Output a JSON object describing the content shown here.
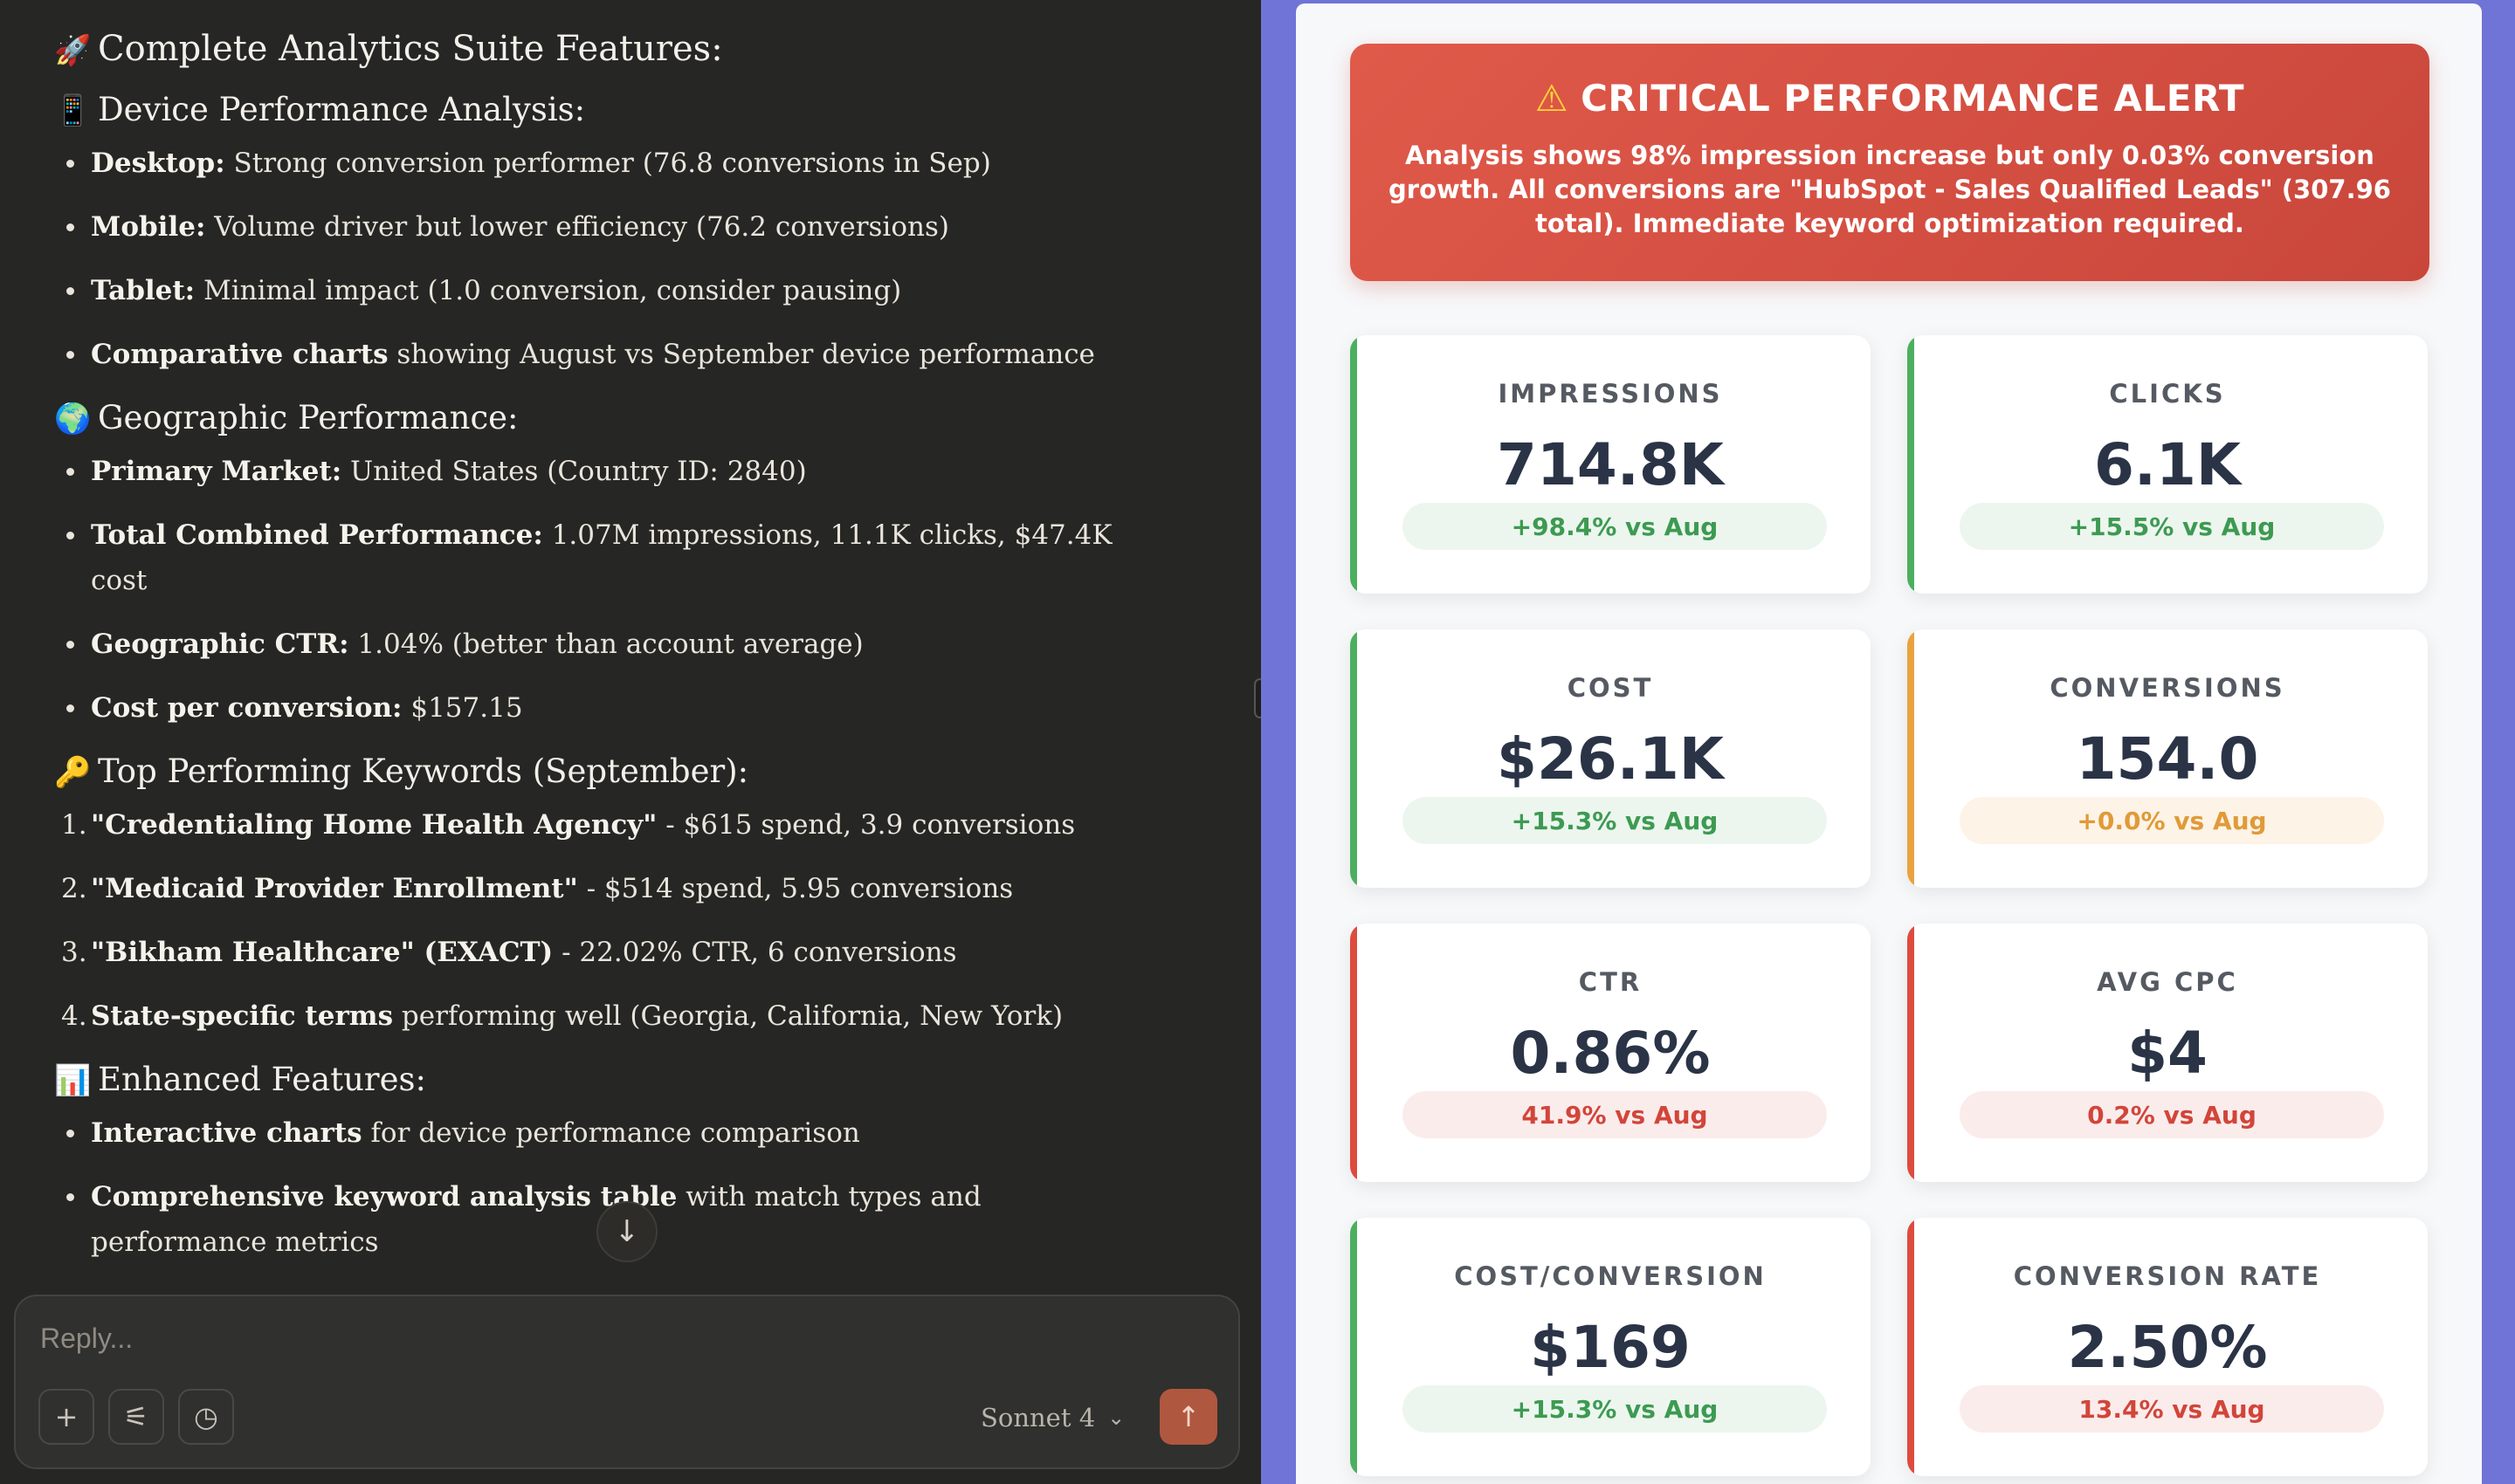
{
  "chat": {
    "title": "Complete Analytics Suite Features:",
    "sections": [
      {
        "heading": "Device Performance Analysis:",
        "items": [
          {
            "bold": "Desktop:",
            "text": " Strong conversion performer (76.8 conversions in Sep)"
          },
          {
            "bold": "Mobile:",
            "text": " Volume driver but lower efficiency (76.2 conversions)"
          },
          {
            "bold": "Tablet:",
            "text": " Minimal impact (1.0 conversion, consider pausing)"
          },
          {
            "bold": "Comparative charts",
            "text": " showing August vs September device performance"
          }
        ]
      },
      {
        "heading": "Geographic Performance:",
        "items": [
          {
            "bold": "Primary Market:",
            "text": " United States (Country ID: 2840)"
          },
          {
            "bold": "Total Combined Performance:",
            "text": " 1.07M impressions, 11.1K clicks, $47.4K cost"
          },
          {
            "bold": "Geographic CTR:",
            "text": " 1.04% (better than account average)"
          },
          {
            "bold": "Cost per conversion:",
            "text": " $157.15"
          }
        ]
      },
      {
        "heading": "Top Performing Keywords (September):",
        "items": [
          {
            "num": "1.",
            "bold": "\"Credentialing Home Health Agency\"",
            "text": " - $615 spend, 3.9 conversions"
          },
          {
            "num": "2.",
            "bold": "\"Medicaid Provider Enrollment\"",
            "text": " - $514 spend, 5.95 conversions"
          },
          {
            "num": "3.",
            "bold": "\"Bikham Healthcare\" (EXACT)",
            "text": " - 22.02% CTR, 6 conversions"
          },
          {
            "num": "4.",
            "bold": "State-specific terms",
            "text": " performing well (Georgia, California, New York)"
          }
        ]
      },
      {
        "heading": "Enhanced Features:",
        "items": [
          {
            "bold": "Interactive charts",
            "text": " for device performance comparison"
          },
          {
            "bold": "Comprehensive keyword analysis table",
            "text": " with match types and performance metrics"
          }
        ]
      }
    ],
    "composer": {
      "placeholder": "Reply...",
      "model": "Sonnet 4"
    }
  },
  "dashboard": {
    "alert": {
      "title": "CRITICAL PERFORMANCE ALERT",
      "body": "Analysis shows 98% impression increase but only 0.03% conversion growth. All conversions are \"HubSpot - Sales Qualified Leads\" (307.96 total). Immediate keyword optimization required."
    },
    "metrics": [
      {
        "label": "IMPRESSIONS",
        "value": "714.8K",
        "change": "+98.4% vs Aug",
        "status": "good"
      },
      {
        "label": "CLICKS",
        "value": "6.1K",
        "change": "+15.5% vs Aug",
        "status": "good"
      },
      {
        "label": "COST",
        "value": "$26.1K",
        "change": "+15.3% vs Aug",
        "status": "good"
      },
      {
        "label": "CONVERSIONS",
        "value": "154.0",
        "change": "+0.0% vs Aug",
        "status": "neutral"
      },
      {
        "label": "CTR",
        "value": "0.86%",
        "change": "41.9% vs Aug",
        "status": "bad"
      },
      {
        "label": "AVG CPC",
        "value": "$4",
        "change": "0.2% vs Aug",
        "status": "bad"
      },
      {
        "label": "COST/CONVERSION",
        "value": "$169",
        "change": "+15.3% vs Aug",
        "status": "good"
      },
      {
        "label": "CONVERSION RATE",
        "value": "2.50%",
        "change": "13.4% vs Aug",
        "status": "bad"
      }
    ],
    "colors": {
      "good": "#4caf5f",
      "neutral": "#e8a33d",
      "bad": "#dd4b3e"
    }
  }
}
